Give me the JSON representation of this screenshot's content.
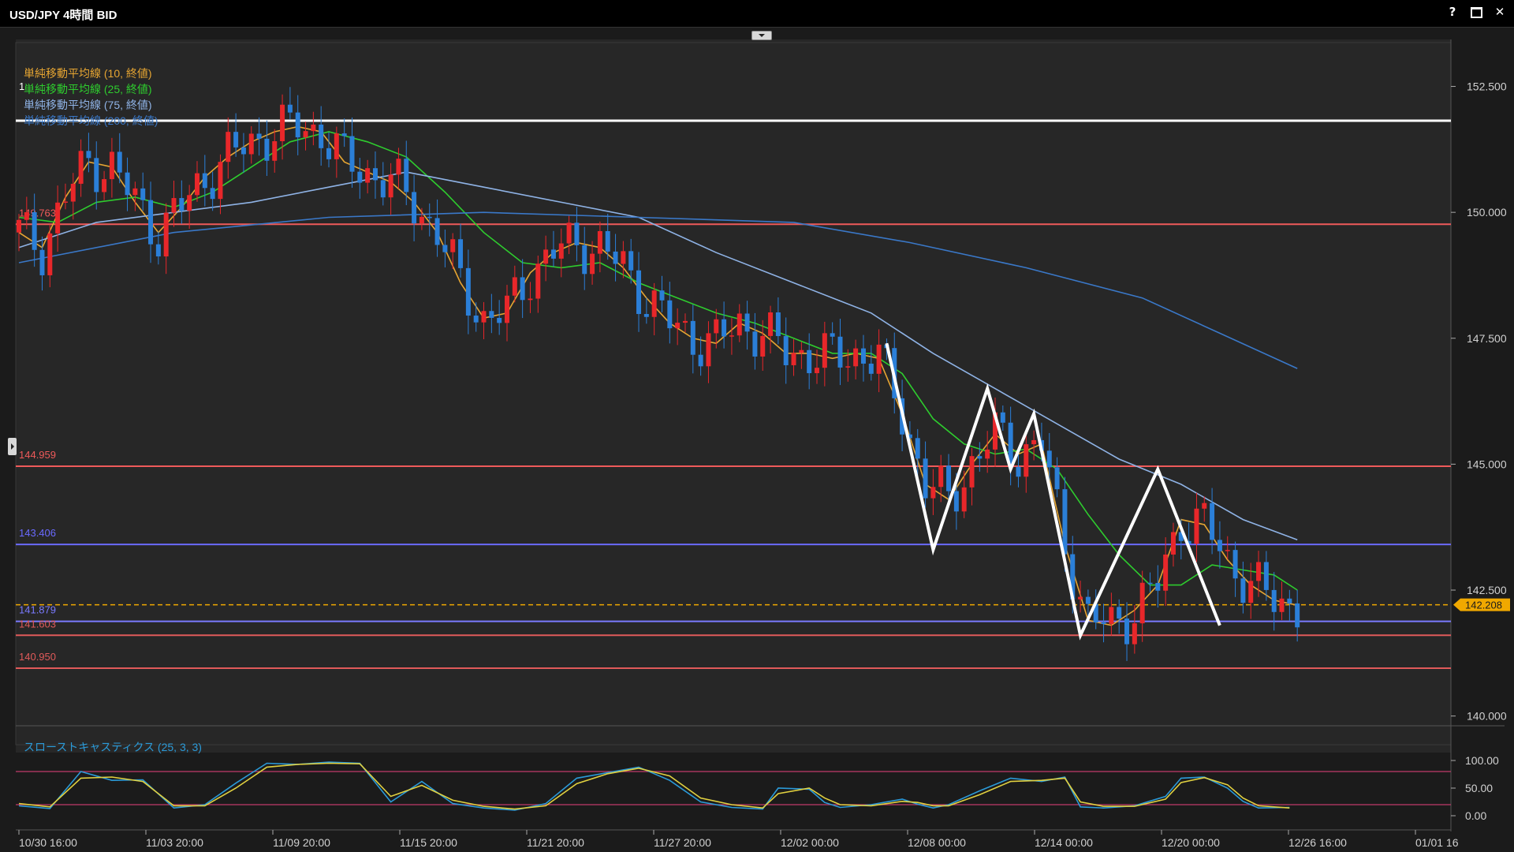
{
  "window": {
    "title": "USD/JPY 4時間 BID",
    "help_label": "?",
    "maximize_label": "",
    "close_label": "✕"
  },
  "legend": [
    {
      "text": "単純移動平均線 (10, 終値)",
      "color": "#e6a532"
    },
    {
      "text": "単純移動平均線 (25, 終値)",
      "color": "#2ecc2e"
    },
    {
      "text": "単純移動平均線 (75, 終値)",
      "color": "#8fb3e6"
    },
    {
      "text": "単純移動平均線 (200, 終値)",
      "color": "#3a78c8"
    }
  ],
  "legend_marker": "1",
  "horizontal_levels": [
    {
      "label": "",
      "value": 151.82,
      "color": "#ffffff"
    },
    {
      "label": "149.763",
      "value": 149.763,
      "color": "#ef5a5a"
    },
    {
      "label": "144.959",
      "value": 144.959,
      "color": "#ef5a5a"
    },
    {
      "label": "143.406",
      "value": 143.406,
      "color": "#6a6aff"
    },
    {
      "label": "141.879",
      "value": 141.879,
      "color": "#7a7aff"
    },
    {
      "label": "141.603",
      "value": 141.603,
      "color": "#e05a5a"
    },
    {
      "label": "140.950",
      "value": 140.95,
      "color": "#e05a5a"
    }
  ],
  "current_price": {
    "label": "142.208",
    "value": 142.208,
    "color": "#f0a800"
  },
  "price_axis": {
    "ticks": [
      "152.500",
      "150.000",
      "147.500",
      "145.000",
      "142.500",
      "140.000"
    ],
    "tick_values": [
      152.5,
      150.0,
      147.5,
      145.0,
      142.5,
      140.0
    ]
  },
  "time_axis": {
    "ticks": [
      "10/30 16:00",
      "11/03 20:00",
      "11/09 20:00",
      "11/15 20:00",
      "11/21 20:00",
      "11/27 20:00",
      "12/02 00:00",
      "12/08 00:00",
      "12/14 00:00",
      "12/20 00:00",
      "12/26 16:00",
      "01/01 16"
    ]
  },
  "stochastic": {
    "title": "スローストキャスティクス (25, 3, 3)",
    "ticks": [
      "100.00",
      "50.00",
      "0.00"
    ],
    "tick_values": [
      100,
      50,
      0
    ],
    "upper_level": 80,
    "lower_level": 20
  },
  "chart_data": {
    "type": "candlestick",
    "symbol": "USD/JPY",
    "timeframe": "4時間",
    "ylim": [
      139.9,
      152.9
    ],
    "up_color": "#e8272a",
    "down_color": "#2b7fd8",
    "ma_series": [
      {
        "name": "単純移動平均線 (10, 終値)",
        "color": "#e6a532",
        "points": [
          [
            0,
            149.6
          ],
          [
            3,
            149.3
          ],
          [
            6,
            150.3
          ],
          [
            9,
            151.0
          ],
          [
            12,
            150.9
          ],
          [
            15,
            150.2
          ],
          [
            18,
            149.6
          ],
          [
            21,
            150.1
          ],
          [
            24,
            150.7
          ],
          [
            27,
            151.1
          ],
          [
            30,
            151.4
          ],
          [
            33,
            151.6
          ],
          [
            36,
            151.7
          ],
          [
            39,
            151.6
          ],
          [
            42,
            151.0
          ],
          [
            45,
            150.8
          ],
          [
            48,
            150.6
          ],
          [
            51,
            150.2
          ],
          [
            54,
            149.6
          ],
          [
            57,
            148.6
          ],
          [
            60,
            147.9
          ],
          [
            63,
            148.0
          ],
          [
            66,
            148.8
          ],
          [
            69,
            149.2
          ],
          [
            72,
            149.4
          ],
          [
            75,
            149.3
          ],
          [
            78,
            148.9
          ],
          [
            81,
            148.3
          ],
          [
            84,
            147.8
          ],
          [
            87,
            147.5
          ],
          [
            90,
            147.4
          ],
          [
            93,
            147.8
          ],
          [
            96,
            147.6
          ],
          [
            99,
            147.2
          ],
          [
            102,
            147.2
          ],
          [
            105,
            147.1
          ],
          [
            108,
            147.2
          ],
          [
            111,
            147.1
          ],
          [
            114,
            146.0
          ],
          [
            117,
            144.6
          ],
          [
            120,
            144.3
          ],
          [
            123,
            145.0
          ],
          [
            126,
            145.6
          ],
          [
            129,
            145.2
          ],
          [
            132,
            145.4
          ],
          [
            135,
            143.4
          ],
          [
            138,
            141.9
          ],
          [
            141,
            141.8
          ],
          [
            144,
            142.1
          ],
          [
            147,
            142.6
          ],
          [
            150,
            143.9
          ],
          [
            153,
            143.8
          ],
          [
            156,
            143.1
          ],
          [
            159,
            142.6
          ],
          [
            162,
            142.3
          ],
          [
            165,
            142.2
          ]
        ]
      },
      {
        "name": "単純移動平均線 (25, 終値)",
        "color": "#2ecc2e",
        "points": [
          [
            0,
            149.9
          ],
          [
            5,
            149.8
          ],
          [
            10,
            150.2
          ],
          [
            15,
            150.3
          ],
          [
            20,
            150.1
          ],
          [
            25,
            150.4
          ],
          [
            30,
            150.9
          ],
          [
            35,
            151.4
          ],
          [
            40,
            151.6
          ],
          [
            45,
            151.4
          ],
          [
            50,
            151.1
          ],
          [
            55,
            150.4
          ],
          [
            60,
            149.6
          ],
          [
            65,
            149.0
          ],
          [
            70,
            148.9
          ],
          [
            75,
            149.0
          ],
          [
            80,
            148.6
          ],
          [
            85,
            148.3
          ],
          [
            90,
            148.0
          ],
          [
            95,
            147.8
          ],
          [
            100,
            147.5
          ],
          [
            105,
            147.2
          ],
          [
            110,
            147.2
          ],
          [
            114,
            146.8
          ],
          [
            118,
            145.9
          ],
          [
            122,
            145.4
          ],
          [
            126,
            145.2
          ],
          [
            130,
            145.3
          ],
          [
            134,
            144.9
          ],
          [
            138,
            144.0
          ],
          [
            142,
            143.2
          ],
          [
            146,
            142.6
          ],
          [
            150,
            142.6
          ],
          [
            154,
            143.0
          ],
          [
            158,
            142.9
          ],
          [
            162,
            142.8
          ],
          [
            165,
            142.5
          ]
        ]
      },
      {
        "name": "単純移動平均線 (75, 終値)",
        "color": "#8fb3e6",
        "points": [
          [
            0,
            149.3
          ],
          [
            10,
            149.8
          ],
          [
            20,
            150.0
          ],
          [
            30,
            150.2
          ],
          [
            40,
            150.5
          ],
          [
            50,
            150.8
          ],
          [
            60,
            150.5
          ],
          [
            70,
            150.2
          ],
          [
            80,
            149.9
          ],
          [
            90,
            149.2
          ],
          [
            100,
            148.6
          ],
          [
            110,
            148.0
          ],
          [
            118,
            147.2
          ],
          [
            126,
            146.5
          ],
          [
            134,
            145.8
          ],
          [
            142,
            145.1
          ],
          [
            150,
            144.6
          ],
          [
            158,
            143.9
          ],
          [
            165,
            143.5
          ]
        ]
      },
      {
        "name": "単純移動平均線 (200, 終値)",
        "color": "#3a78c8",
        "points": [
          [
            0,
            149.0
          ],
          [
            20,
            149.6
          ],
          [
            40,
            149.9
          ],
          [
            60,
            150.0
          ],
          [
            80,
            149.9
          ],
          [
            100,
            149.8
          ],
          [
            115,
            149.4
          ],
          [
            130,
            148.9
          ],
          [
            145,
            148.3
          ],
          [
            155,
            147.6
          ],
          [
            165,
            146.9
          ]
        ]
      }
    ],
    "annotation_zigzag": [
      [
        112,
        147.4
      ],
      [
        118,
        143.3
      ],
      [
        125,
        146.5
      ],
      [
        128,
        144.9
      ],
      [
        131,
        146.0
      ],
      [
        137,
        141.6
      ],
      [
        147,
        144.9
      ],
      [
        155,
        141.8
      ]
    ],
    "stoch_k": [
      [
        0,
        18
      ],
      [
        4,
        13
      ],
      [
        8,
        80
      ],
      [
        12,
        64
      ],
      [
        16,
        65
      ],
      [
        20,
        14
      ],
      [
        24,
        20
      ],
      [
        28,
        59
      ],
      [
        32,
        95
      ],
      [
        36,
        93
      ],
      [
        40,
        97
      ],
      [
        44,
        95
      ],
      [
        48,
        25
      ],
      [
        52,
        62
      ],
      [
        56,
        22
      ],
      [
        60,
        14
      ],
      [
        64,
        10
      ],
      [
        68,
        22
      ],
      [
        72,
        68
      ],
      [
        76,
        78
      ],
      [
        80,
        88
      ],
      [
        84,
        64
      ],
      [
        88,
        25
      ],
      [
        92,
        15
      ],
      [
        96,
        12
      ],
      [
        98,
        50
      ],
      [
        102,
        48
      ],
      [
        104,
        24
      ],
      [
        106,
        15
      ],
      [
        110,
        20
      ],
      [
        114,
        30
      ],
      [
        116,
        21
      ],
      [
        118,
        14
      ],
      [
        120,
        20
      ],
      [
        124,
        45
      ],
      [
        128,
        68
      ],
      [
        132,
        62
      ],
      [
        135,
        70
      ],
      [
        137,
        16
      ],
      [
        140,
        14
      ],
      [
        144,
        18
      ],
      [
        148,
        35
      ],
      [
        150,
        68
      ],
      [
        153,
        70
      ],
      [
        156,
        50
      ],
      [
        158,
        26
      ],
      [
        160,
        14
      ],
      [
        164,
        15
      ]
    ],
    "stoch_d": [
      [
        0,
        22
      ],
      [
        4,
        16
      ],
      [
        8,
        68
      ],
      [
        12,
        70
      ],
      [
        16,
        62
      ],
      [
        20,
        18
      ],
      [
        24,
        18
      ],
      [
        28,
        50
      ],
      [
        32,
        88
      ],
      [
        36,
        93
      ],
      [
        40,
        95
      ],
      [
        44,
        94
      ],
      [
        48,
        35
      ],
      [
        52,
        55
      ],
      [
        56,
        28
      ],
      [
        60,
        17
      ],
      [
        64,
        12
      ],
      [
        68,
        18
      ],
      [
        72,
        58
      ],
      [
        76,
        76
      ],
      [
        80,
        86
      ],
      [
        84,
        72
      ],
      [
        88,
        32
      ],
      [
        92,
        20
      ],
      [
        96,
        14
      ],
      [
        98,
        40
      ],
      [
        102,
        50
      ],
      [
        104,
        32
      ],
      [
        106,
        20
      ],
      [
        110,
        18
      ],
      [
        114,
        26
      ],
      [
        116,
        24
      ],
      [
        118,
        18
      ],
      [
        120,
        18
      ],
      [
        124,
        38
      ],
      [
        128,
        62
      ],
      [
        132,
        64
      ],
      [
        135,
        68
      ],
      [
        137,
        25
      ],
      [
        140,
        17
      ],
      [
        144,
        17
      ],
      [
        148,
        30
      ],
      [
        150,
        60
      ],
      [
        153,
        69
      ],
      [
        156,
        56
      ],
      [
        158,
        32
      ],
      [
        160,
        18
      ],
      [
        164,
        14
      ]
    ]
  }
}
